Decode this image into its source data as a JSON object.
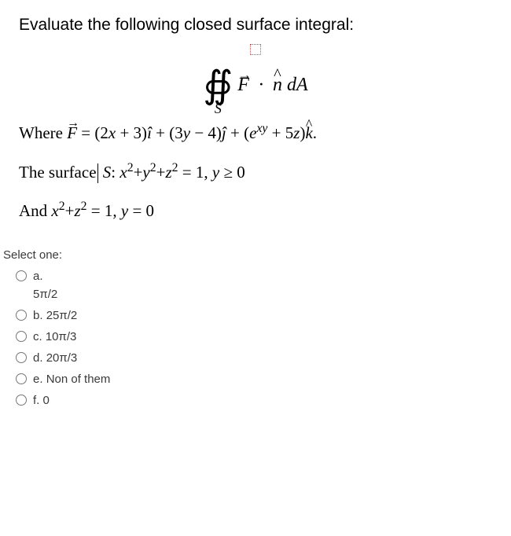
{
  "question": {
    "prompt": "Evaluate the following closed surface integral:",
    "integral_expr_parts": {
      "F": "F",
      "dot": "·",
      "nhat": "n",
      "dA": " dA",
      "sub": "S"
    },
    "where_prefix": "Where ",
    "where_F": "F",
    "where_eq": " = (2",
    "x": "x",
    "plus3": " + 3)",
    "ihat": "î",
    "plus_3y": " + (3",
    "y": "y",
    "minus4": " − 4)",
    "jhat": "ĵ",
    "plus_e": " + (",
    "e": "e",
    "exy": "xy",
    "plus5z": " + 5",
    "z": "z",
    "close_k": ")",
    "khat": "k",
    "dot_end": ".",
    "surface_prefix": "The surface",
    "S_label": " S",
    "surf_colon": ": ",
    "surf_eq": " = 1,   ",
    "y_geq": " ≥ 0",
    "and_prefix": "And  ",
    "and_eq": " = 1,   ",
    "y_eq0": " = 0"
  },
  "answers": {
    "select_one": "Select one:",
    "options": [
      {
        "letter": "a.",
        "text": "5π/2",
        "two_line": true
      },
      {
        "letter": "b.",
        "text": "25π/2",
        "two_line": false
      },
      {
        "letter": "c.",
        "text": "10π/3",
        "two_line": false
      },
      {
        "letter": "d.",
        "text": "20π/3",
        "two_line": false
      },
      {
        "letter": "e.",
        "text": "Non of them",
        "two_line": false
      },
      {
        "letter": "f.",
        "text": "0",
        "two_line": false
      }
    ]
  },
  "colors": {
    "text": "#000000",
    "answer_text": "#3a3a3a",
    "flag_border": "#c05050",
    "background": "#ffffff"
  }
}
